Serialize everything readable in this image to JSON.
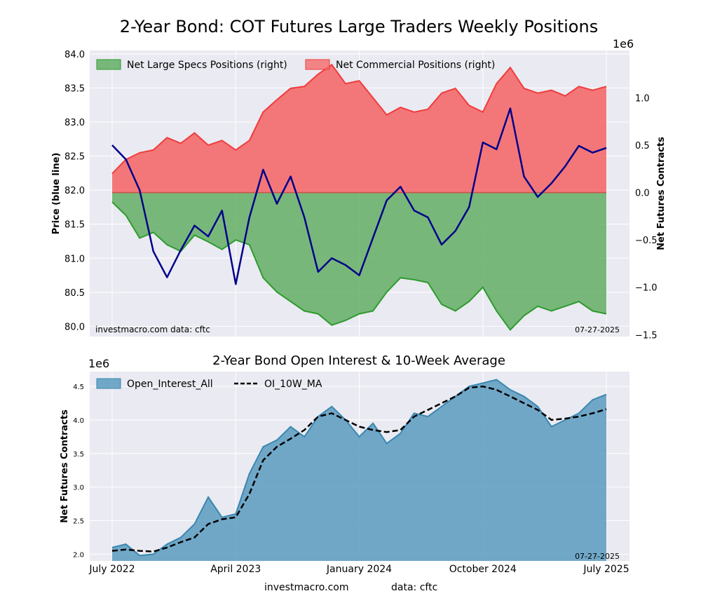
{
  "figure": {
    "title": "2-Year Bond: COT Futures Large Traders Weekly Positions",
    "footer_left": "investmacro.com",
    "footer_right": "data: cftc"
  },
  "colors": {
    "plot_bg": "#eaeaf2",
    "grid": "#ffffff",
    "price_line": "#00008b",
    "specs_fill": "#5aaa5a",
    "specs_line": "#2e9b2e",
    "comm_fill": "#f46a6a",
    "comm_line": "#f03c3c",
    "oi_fill": "#5b9bc0",
    "oi_line": "#3a87b0",
    "ma_line": "#000000"
  },
  "chart_data": [
    {
      "type": "area",
      "title": "",
      "watermark_left": "investmacro.com    data: cftc",
      "watermark_right": "07-27-2025",
      "ylabel": "Price (blue line)",
      "y2label": "Net Futures Contracts",
      "y2_multiplier": "1e6",
      "ylim": [
        79.85,
        84.05
      ],
      "y2lim": [
        -1.52,
        1.5
      ],
      "yticks": [
        "84.0",
        "83.5",
        "83.0",
        "82.5",
        "82.0",
        "81.5",
        "81.0",
        "80.5",
        "80.0"
      ],
      "y2ticks": [
        "1.0",
        "0.5",
        "0.0",
        "−0.5",
        "−1.0",
        "−1.5"
      ],
      "legend": [
        "Net Large Specs Positions (right)",
        "Net Commercial Positions (right)"
      ],
      "legend_position": "top-left",
      "grid": true,
      "x": [
        "2022-07",
        "2022-08",
        "2022-09",
        "2022-10",
        "2022-11",
        "2022-12",
        "2023-01",
        "2023-02",
        "2023-03",
        "2023-04",
        "2023-05",
        "2023-06",
        "2023-07",
        "2023-08",
        "2023-09",
        "2023-10",
        "2023-11",
        "2023-12",
        "2024-01",
        "2024-02",
        "2024-03",
        "2024-04",
        "2024-05",
        "2024-06",
        "2024-07",
        "2024-08",
        "2024-09",
        "2024-10",
        "2024-11",
        "2024-12",
        "2025-01",
        "2025-02",
        "2025-03",
        "2025-04",
        "2025-05",
        "2025-06",
        "2025-07"
      ],
      "series": [
        {
          "name": "Price",
          "axis": "left",
          "values": [
            82.66,
            82.45,
            82.0,
            81.1,
            80.72,
            81.12,
            81.48,
            81.32,
            81.7,
            80.62,
            81.6,
            82.3,
            81.8,
            82.2,
            81.6,
            80.8,
            81.0,
            80.9,
            80.75,
            81.3,
            81.85,
            82.05,
            81.7,
            81.6,
            81.2,
            81.4,
            81.75,
            82.7,
            82.6,
            83.2,
            82.2,
            81.9,
            82.1,
            82.35,
            82.65,
            82.55,
            82.62
          ]
        },
        {
          "name": "Net Large Specs Positions (right)",
          "axis": "right",
          "values": [
            -0.1,
            -0.24,
            -0.48,
            -0.42,
            -0.55,
            -0.62,
            -0.45,
            -0.52,
            -0.6,
            -0.5,
            -0.55,
            -0.9,
            -1.05,
            -1.15,
            -1.25,
            -1.28,
            -1.4,
            -1.35,
            -1.28,
            -1.25,
            -1.05,
            -0.9,
            -0.92,
            -0.95,
            -1.18,
            -1.25,
            -1.15,
            -1.0,
            -1.25,
            -1.45,
            -1.3,
            -1.2,
            -1.25,
            -1.2,
            -1.15,
            -1.25,
            -1.28
          ]
        },
        {
          "name": "Net Commercial Positions (right)",
          "axis": "right",
          "values": [
            0.2,
            0.35,
            0.42,
            0.45,
            0.58,
            0.52,
            0.63,
            0.5,
            0.55,
            0.45,
            0.55,
            0.85,
            0.98,
            1.1,
            1.12,
            1.25,
            1.35,
            1.15,
            1.18,
            1.0,
            0.82,
            0.9,
            0.85,
            0.88,
            1.05,
            1.1,
            0.92,
            0.85,
            1.15,
            1.32,
            1.1,
            1.05,
            1.08,
            1.02,
            1.12,
            1.08,
            1.12
          ]
        }
      ]
    },
    {
      "type": "area",
      "title": "2-Year Bond Open Interest & 10-Week Average",
      "watermark_right": "07-27-2025",
      "ylabel": "Net Futures Contracts",
      "y_multiplier": "1e6",
      "ylim": [
        1.9,
        4.72
      ],
      "yticks": [
        "4.5",
        "4.0",
        "3.5",
        "3.0",
        "2.5",
        "2.0"
      ],
      "xticks": [
        "July 2022",
        "April 2023",
        "January 2024",
        "October 2024",
        "July 2025"
      ],
      "legend": [
        "Open_Interest_All",
        "OI_10W_MA"
      ],
      "legend_position": "top-left",
      "grid": true,
      "x": [
        "2022-07",
        "2022-08",
        "2022-09",
        "2022-10",
        "2022-11",
        "2022-12",
        "2023-01",
        "2023-02",
        "2023-03",
        "2023-04",
        "2023-05",
        "2023-06",
        "2023-07",
        "2023-08",
        "2023-09",
        "2023-10",
        "2023-11",
        "2023-12",
        "2024-01",
        "2024-02",
        "2024-03",
        "2024-04",
        "2024-05",
        "2024-06",
        "2024-07",
        "2024-08",
        "2024-09",
        "2024-10",
        "2024-11",
        "2024-12",
        "2025-01",
        "2025-02",
        "2025-03",
        "2025-04",
        "2025-05",
        "2025-06",
        "2025-07"
      ],
      "series": [
        {
          "name": "Open_Interest_All",
          "values": [
            2.1,
            2.15,
            1.98,
            2.0,
            2.15,
            2.25,
            2.45,
            2.85,
            2.55,
            2.6,
            3.2,
            3.6,
            3.7,
            3.9,
            3.75,
            4.05,
            4.2,
            4.0,
            3.75,
            3.95,
            3.65,
            3.8,
            4.1,
            4.05,
            4.2,
            4.35,
            4.5,
            4.55,
            4.6,
            4.45,
            4.35,
            4.2,
            3.9,
            4.0,
            4.1,
            4.3,
            4.38
          ]
        },
        {
          "name": "OI_10W_MA",
          "values": [
            2.05,
            2.07,
            2.05,
            2.04,
            2.1,
            2.18,
            2.25,
            2.45,
            2.52,
            2.55,
            2.9,
            3.4,
            3.6,
            3.72,
            3.85,
            4.05,
            4.1,
            4.0,
            3.9,
            3.85,
            3.82,
            3.85,
            4.05,
            4.15,
            4.25,
            4.35,
            4.48,
            4.5,
            4.45,
            4.35,
            4.25,
            4.15,
            4.0,
            4.02,
            4.05,
            4.1,
            4.16
          ]
        }
      ]
    }
  ]
}
